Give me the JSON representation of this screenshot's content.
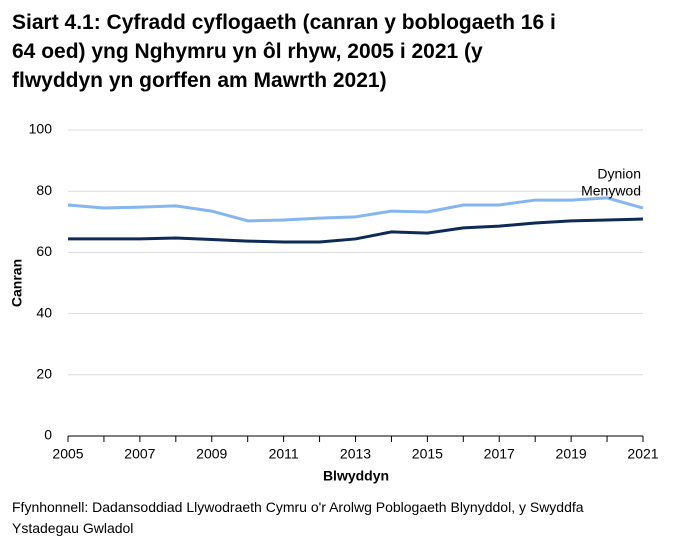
{
  "chart_data": {
    "type": "line",
    "title": "Siart 4.1: Cyfradd cyflogaeth (canran y boblogaeth 16 i 64 oed) yng Nghymru yn ôl rhyw, 2005 i 2021 (y flwyddyn yn gorffen am Mawrth 2021)",
    "x_label": "Blwyddyn",
    "y_label": "Canran",
    "source": "Ffynhonnell: Dadansoddiad Llywodraeth Cymru o'r Arolwg Poblogaeth Blynyddol, y Swyddfa Ystadegau Gwladol",
    "x": [
      2005,
      2006,
      2007,
      2008,
      2009,
      2010,
      2011,
      2012,
      2013,
      2014,
      2015,
      2016,
      2017,
      2018,
      2019,
      2020,
      2021
    ],
    "series": [
      {
        "name": "Dynion",
        "color": "#86b6ef",
        "values": [
          75.5,
          74.5,
          74.8,
          75.2,
          73.5,
          70.3,
          70.6,
          71.2,
          71.6,
          73.5,
          73.2,
          75.5,
          75.5,
          77.1,
          77.1,
          77.8,
          74.5
        ]
      },
      {
        "name": "Menywod",
        "color": "#0e2a56",
        "values": [
          64.4,
          64.4,
          64.4,
          64.7,
          64.2,
          63.7,
          63.4,
          63.4,
          64.4,
          66.7,
          66.3,
          68.0,
          68.6,
          69.6,
          70.3,
          70.6,
          70.9
        ]
      }
    ],
    "xlim": [
      2005,
      2021
    ],
    "xticks": [
      2005,
      2007,
      2009,
      2011,
      2013,
      2015,
      2017,
      2019,
      2021
    ],
    "ylim": [
      0,
      100
    ],
    "yticks": [
      0,
      20,
      40,
      60,
      80,
      100
    ],
    "grid": true
  }
}
